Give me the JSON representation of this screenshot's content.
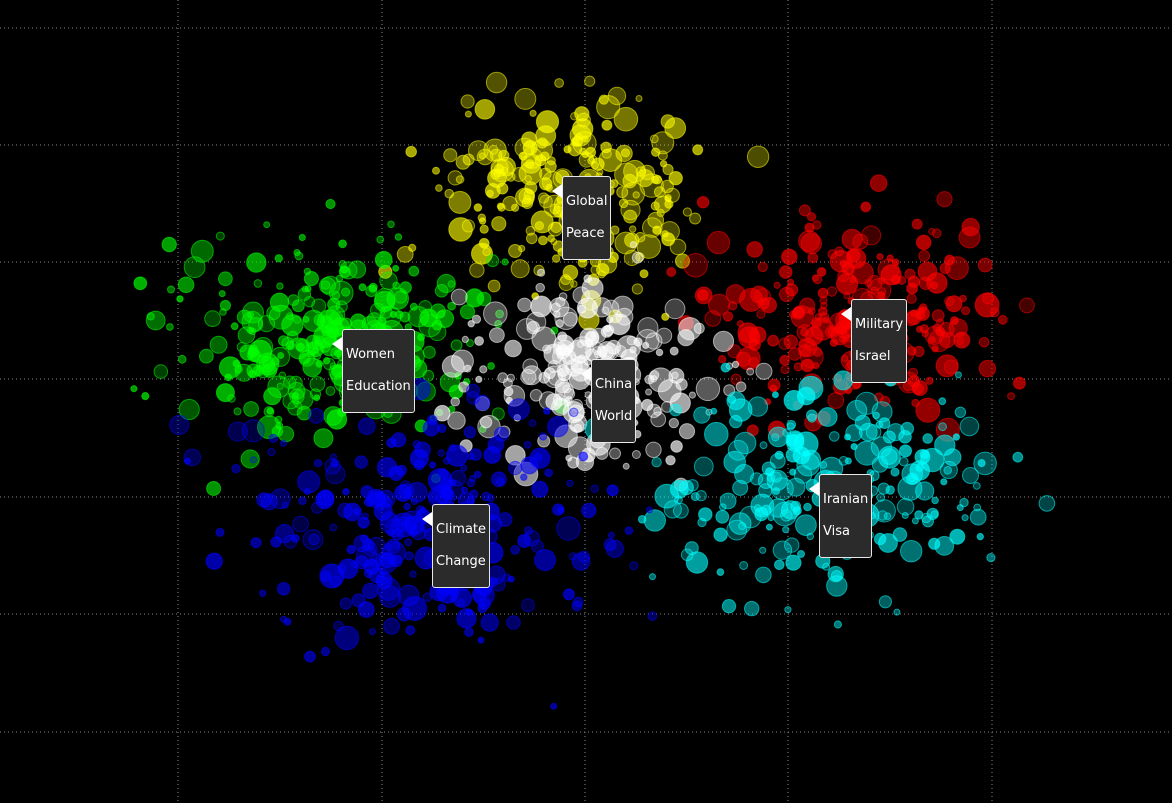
{
  "chart_data": {
    "type": "scatter",
    "title": "",
    "xlabel": "",
    "ylabel": "",
    "grid": true,
    "grid_style": "dotted",
    "background": "#000000",
    "series": [
      {
        "name": "",
        "color": "#ffff00",
        "label_lines": [
          "Global",
          "Peace"
        ],
        "center": [
          575,
          195
        ],
        "spread": [
          120,
          95
        ],
        "count": 260
      },
      {
        "name": "",
        "color": "#00ff00",
        "label_lines": [
          "Women",
          "Education"
        ],
        "center": [
          330,
          340
        ],
        "spread": [
          140,
          90
        ],
        "count": 300
      },
      {
        "name": "",
        "color": "#ff0000",
        "label_lines": [
          "Military",
          "Israel"
        ],
        "center": [
          860,
          320
        ],
        "spread": [
          140,
          90
        ],
        "count": 260
      },
      {
        "name": "",
        "color": "#ffffff",
        "label_lines": [
          "China",
          "World"
        ],
        "center": [
          590,
          375
        ],
        "spread": [
          110,
          80
        ],
        "count": 230
      },
      {
        "name": "",
        "color": "#00ffff",
        "label_lines": [
          "Iranian",
          "Visa"
        ],
        "center": [
          830,
          490
        ],
        "spread": [
          160,
          85
        ],
        "count": 240
      },
      {
        "name": "",
        "color": "#0000ff",
        "label_lines": [
          "Climate",
          "Change"
        ],
        "center": [
          430,
          530
        ],
        "spread": [
          170,
          110
        ],
        "count": 290
      }
    ]
  }
}
